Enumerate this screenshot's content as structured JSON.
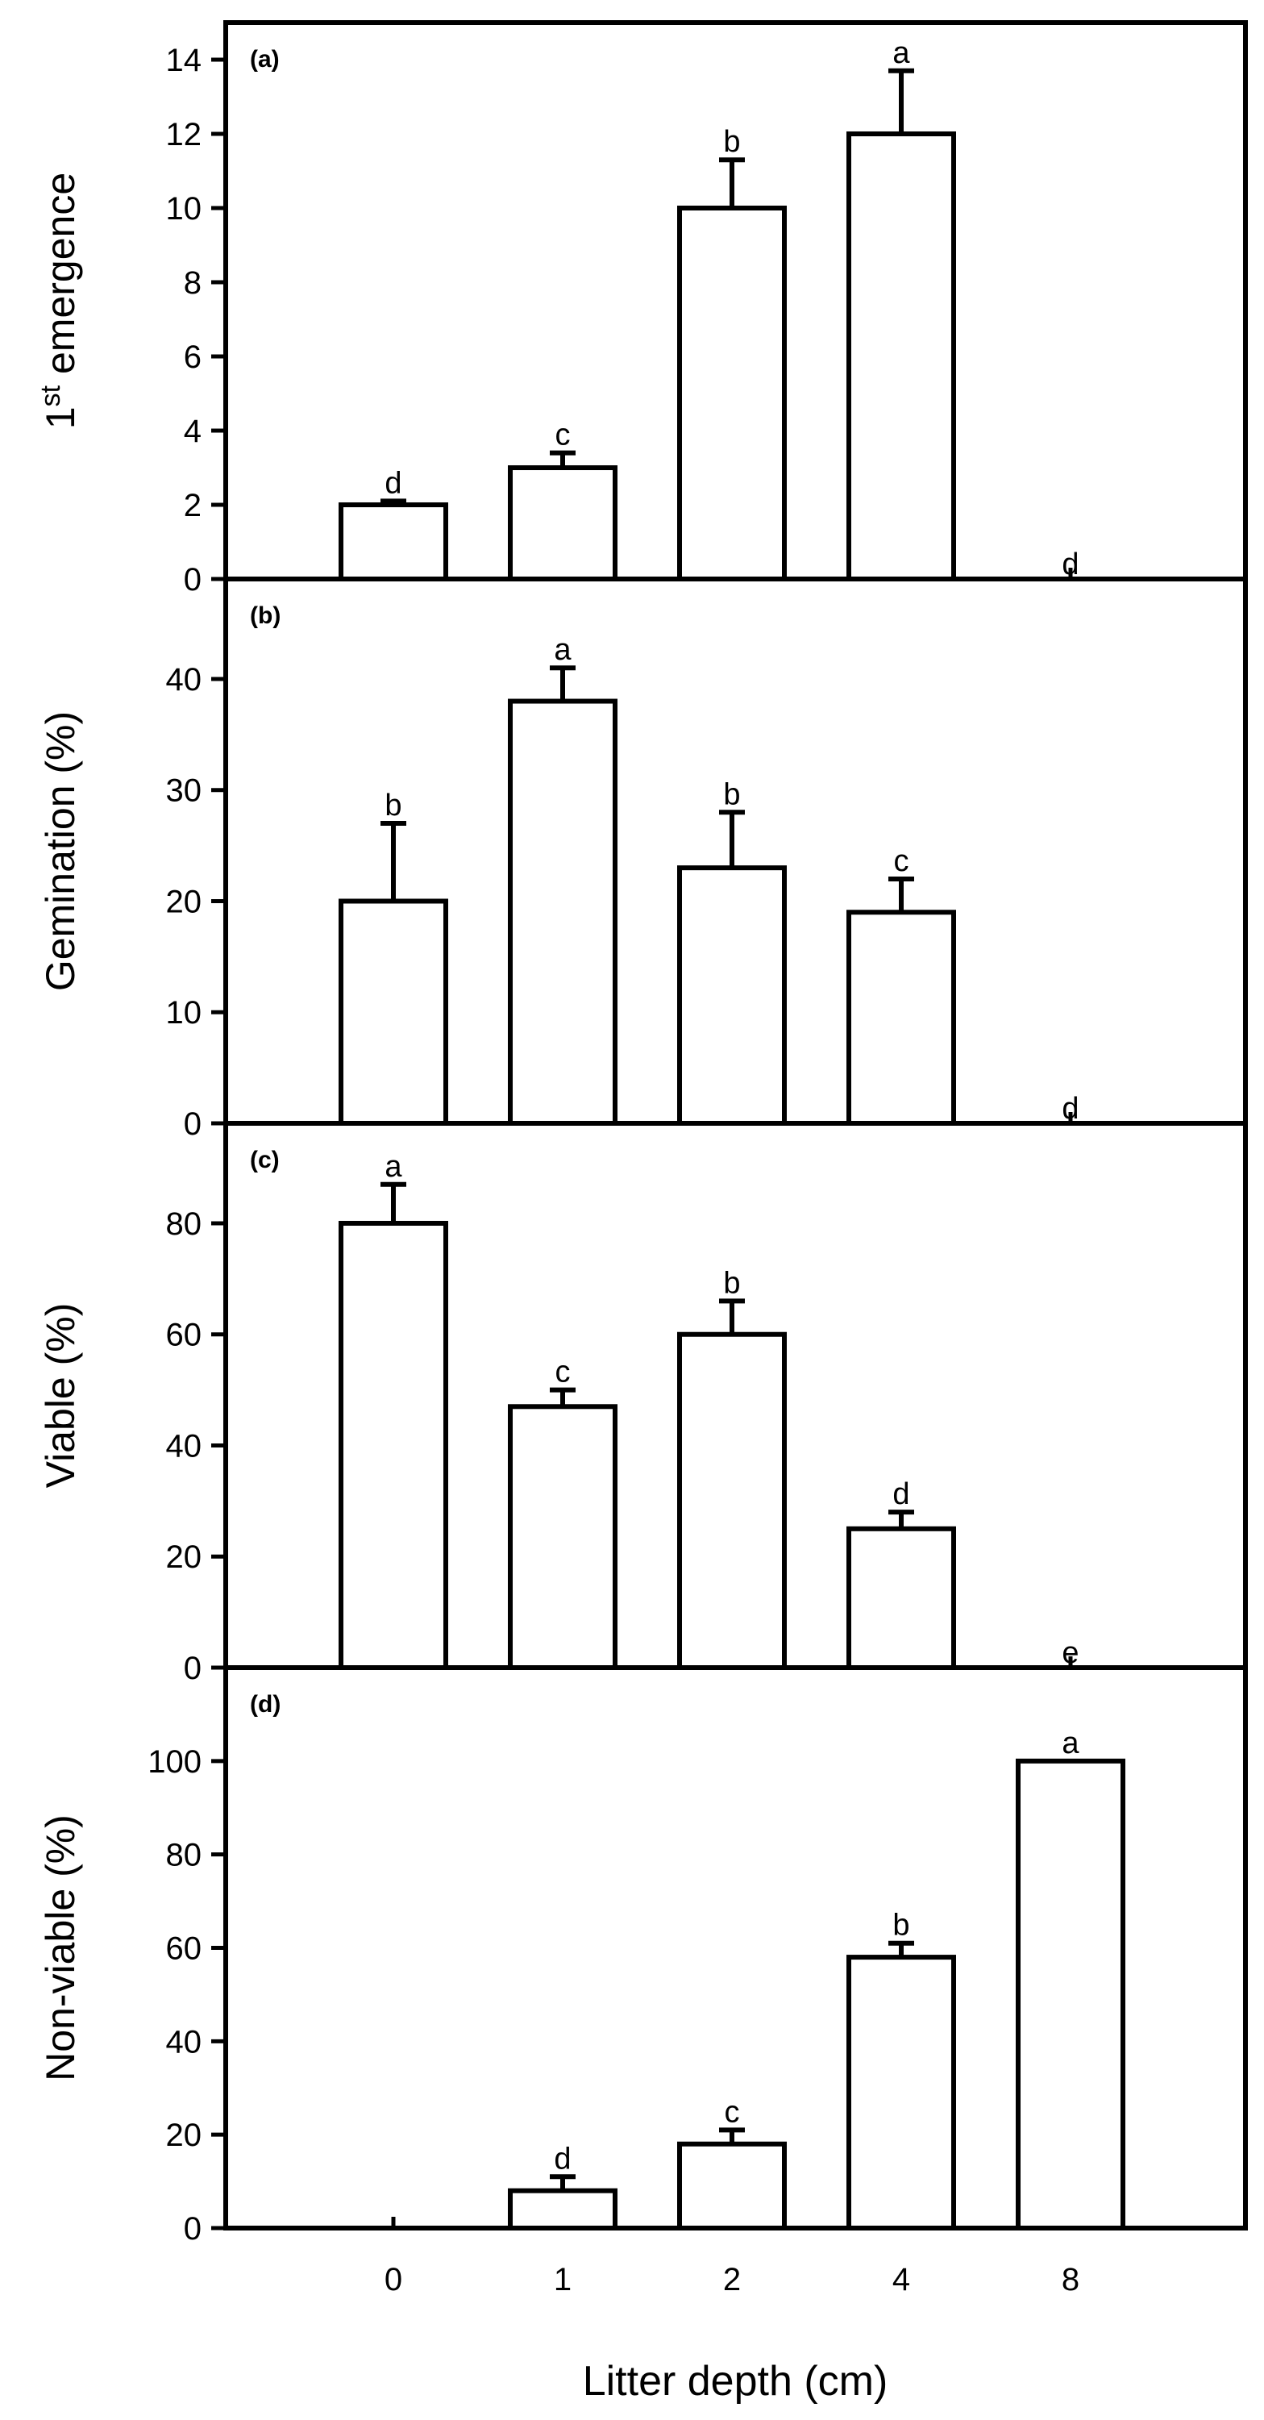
{
  "figure": {
    "xlabel": "Litter depth (cm)",
    "categories": [
      "0",
      "1",
      "2",
      "4",
      "8"
    ]
  },
  "chart_data": [
    {
      "type": "bar",
      "panel": "(a)",
      "ylabel": "1st emergence",
      "ylabel_main": "1",
      "ylabel_sup": "st",
      "ylabel_rest": " emergence",
      "categories": [
        "0",
        "1",
        "2",
        "4",
        "8"
      ],
      "values": [
        2,
        3,
        10,
        12,
        0
      ],
      "errors": [
        0.1,
        0.4,
        1.3,
        1.7,
        0
      ],
      "letters": [
        "d",
        "c",
        "b",
        "a",
        "d"
      ],
      "ylim": [
        0,
        15
      ],
      "yticks": [
        0,
        2,
        4,
        6,
        8,
        10,
        12,
        14
      ]
    },
    {
      "type": "bar",
      "panel": "(b)",
      "ylabel": "Gemination (%)",
      "categories": [
        "0",
        "1",
        "2",
        "4",
        "8"
      ],
      "values": [
        20,
        38,
        23,
        19,
        0
      ],
      "errors": [
        7,
        3,
        5,
        3,
        0
      ],
      "letters": [
        "b",
        "a",
        "b",
        "c",
        "d"
      ],
      "ylim": [
        0,
        49
      ],
      "yticks": [
        0,
        10,
        20,
        30,
        40
      ]
    },
    {
      "type": "bar",
      "panel": "(c)",
      "ylabel": "Viable (%)",
      "categories": [
        "0",
        "1",
        "2",
        "4",
        "8"
      ],
      "values": [
        80,
        47,
        60,
        25,
        0
      ],
      "errors": [
        7,
        3,
        6,
        3,
        0
      ],
      "letters": [
        "a",
        "c",
        "b",
        "d",
        "e"
      ],
      "ylim": [
        0,
        98
      ],
      "yticks": [
        0,
        20,
        40,
        60,
        80
      ]
    },
    {
      "type": "bar",
      "panel": "(d)",
      "ylabel": "Non-viable (%)",
      "categories": [
        "0",
        "1",
        "2",
        "4",
        "8"
      ],
      "values": [
        0,
        8,
        18,
        58,
        100
      ],
      "errors": [
        0,
        3,
        3,
        3,
        0
      ],
      "letters": [
        "",
        "d",
        "c",
        "b",
        "a"
      ],
      "ylim": [
        0,
        120
      ],
      "yticks": [
        0,
        20,
        40,
        60,
        80,
        100
      ]
    }
  ]
}
